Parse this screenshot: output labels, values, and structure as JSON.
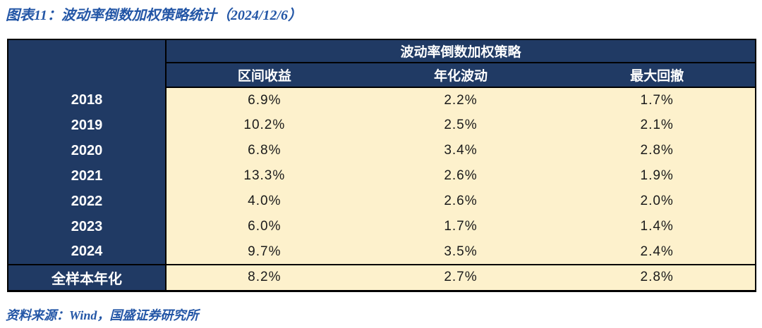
{
  "figure": {
    "title": "图表11：波动率倒数加权策略统计（2024/12/6）",
    "source": "资料来源：Wind，国盛证券研究所"
  },
  "table": {
    "group_header": "波动率倒数加权策略",
    "columns": [
      "区间收益",
      "年化波动",
      "最大回撤"
    ],
    "rows": [
      {
        "label": "2018",
        "values": [
          "6.9%",
          "2.2%",
          "1.7%"
        ]
      },
      {
        "label": "2019",
        "values": [
          "10.2%",
          "2.5%",
          "2.1%"
        ]
      },
      {
        "label": "2020",
        "values": [
          "6.8%",
          "3.4%",
          "2.8%"
        ]
      },
      {
        "label": "2021",
        "values": [
          "13.3%",
          "2.6%",
          "1.9%"
        ]
      },
      {
        "label": "2022",
        "values": [
          "4.0%",
          "2.6%",
          "2.0%"
        ]
      },
      {
        "label": "2023",
        "values": [
          "6.0%",
          "1.7%",
          "1.4%"
        ]
      },
      {
        "label": "2024",
        "values": [
          "9.7%",
          "3.5%",
          "2.4%"
        ]
      },
      {
        "label": "全样本年化",
        "values": [
          "8.2%",
          "2.7%",
          "2.8%"
        ]
      }
    ]
  },
  "colors": {
    "header_navy": "#203A64",
    "cell_cream": "#FDF1CC",
    "title_blue": "#2356A6",
    "border_black": "#000000"
  },
  "chart_data": {
    "type": "table",
    "title": "波动率倒数加权策略统计（2024/12/6）",
    "group_header": "波动率倒数加权策略",
    "columns": [
      "区间收益",
      "年化波动",
      "最大回撤"
    ],
    "row_labels": [
      "2018",
      "2019",
      "2020",
      "2021",
      "2022",
      "2023",
      "2024",
      "全样本年化"
    ],
    "values_percent": [
      [
        6.9,
        2.2,
        1.7
      ],
      [
        10.2,
        2.5,
        2.1
      ],
      [
        6.8,
        3.4,
        2.8
      ],
      [
        13.3,
        2.6,
        1.9
      ],
      [
        4.0,
        2.6,
        2.0
      ],
      [
        6.0,
        1.7,
        1.4
      ],
      [
        9.7,
        3.5,
        2.4
      ],
      [
        8.2,
        2.7,
        2.8
      ]
    ]
  }
}
